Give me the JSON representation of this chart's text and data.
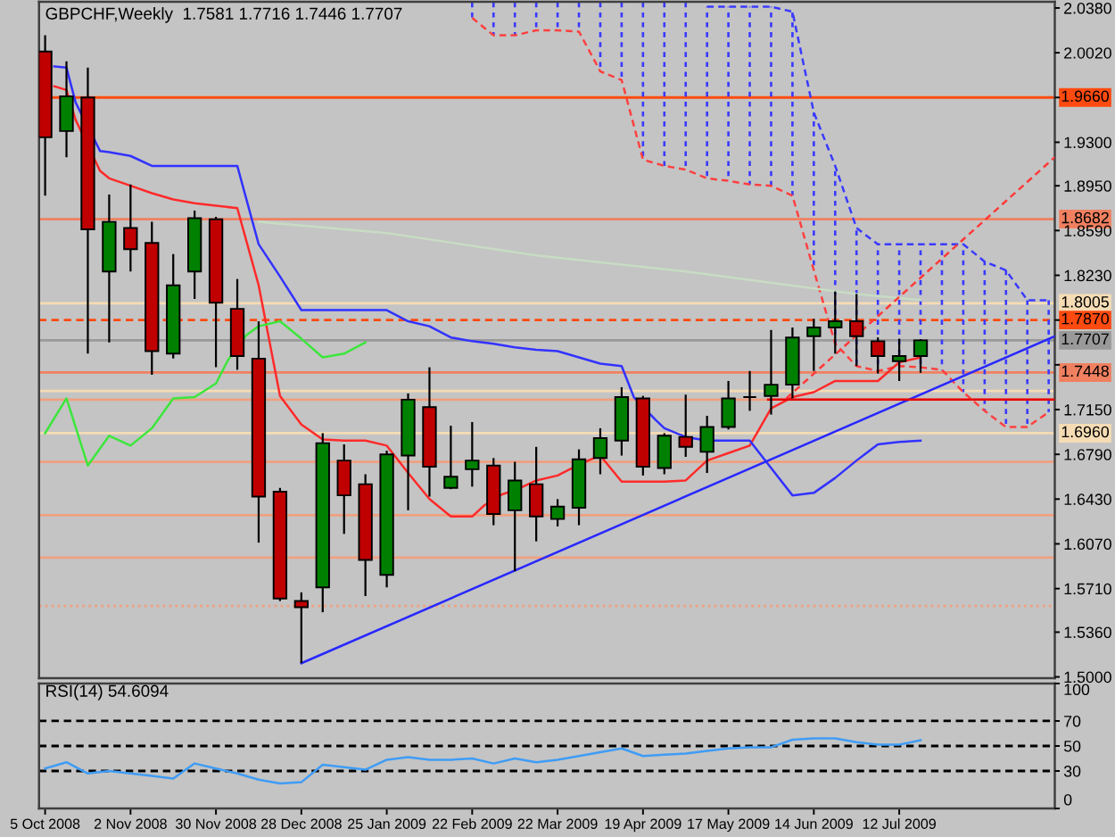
{
  "chart_data": [
    {
      "type": "candlestick",
      "title": "GBPCHF,Weekly  1.7581 1.7716 1.7446 1.7707",
      "x": [
        "2008-10-05",
        "2008-10-12",
        "2008-10-19",
        "2008-10-26",
        "2008-11-02",
        "2008-11-09",
        "2008-11-16",
        "2008-11-23",
        "2008-11-30",
        "2008-12-07",
        "2008-12-14",
        "2008-12-21",
        "2008-12-28",
        "2009-01-04",
        "2009-01-11",
        "2009-01-18",
        "2009-01-25",
        "2009-02-01",
        "2009-02-08",
        "2009-02-15",
        "2009-02-22",
        "2009-03-01",
        "2009-03-08",
        "2009-03-15",
        "2009-03-22",
        "2009-03-29",
        "2009-04-05",
        "2009-04-12",
        "2009-04-19",
        "2009-04-26",
        "2009-05-03",
        "2009-05-10",
        "2009-05-17",
        "2009-05-24",
        "2009-05-31",
        "2009-06-07",
        "2009-06-14",
        "2009-06-21",
        "2009-06-28",
        "2009-07-05",
        "2009-07-12",
        "2009-07-19"
      ],
      "ohlc": [
        [
          2.003,
          2.016,
          1.887,
          1.934
        ],
        [
          1.939,
          1.995,
          1.918,
          1.967
        ],
        [
          1.966,
          1.99,
          1.76,
          1.86
        ],
        [
          1.826,
          1.888,
          1.769,
          1.866
        ],
        [
          1.861,
          1.896,
          1.826,
          1.844
        ],
        [
          1.849,
          1.866,
          1.743,
          1.762
        ],
        [
          1.76,
          1.84,
          1.756,
          1.815
        ],
        [
          1.826,
          1.875,
          1.804,
          1.869
        ],
        [
          1.868,
          1.87,
          1.749,
          1.801
        ],
        [
          1.796,
          1.82,
          1.747,
          1.758
        ],
        [
          1.756,
          1.786,
          1.608,
          1.645
        ],
        [
          1.649,
          1.652,
          1.561,
          1.563
        ],
        [
          1.561,
          1.568,
          1.511,
          1.556
        ],
        [
          1.572,
          1.696,
          1.552,
          1.688
        ],
        [
          1.674,
          1.687,
          1.615,
          1.646
        ],
        [
          1.655,
          1.663,
          1.565,
          1.594
        ],
        [
          1.582,
          1.682,
          1.572,
          1.679
        ],
        [
          1.678,
          1.728,
          1.634,
          1.723
        ],
        [
          1.717,
          1.749,
          1.645,
          1.669
        ],
        [
          1.652,
          1.702,
          1.651,
          1.661
        ],
        [
          1.667,
          1.705,
          1.653,
          1.674
        ],
        [
          1.67,
          1.676,
          1.622,
          1.631
        ],
        [
          1.634,
          1.673,
          1.585,
          1.658
        ],
        [
          1.655,
          1.685,
          1.609,
          1.629
        ],
        [
          1.627,
          1.643,
          1.621,
          1.637
        ],
        [
          1.636,
          1.683,
          1.622,
          1.675
        ],
        [
          1.676,
          1.7,
          1.663,
          1.692
        ],
        [
          1.69,
          1.733,
          1.678,
          1.725
        ],
        [
          1.724,
          1.726,
          1.662,
          1.669
        ],
        [
          1.668,
          1.696,
          1.663,
          1.694
        ],
        [
          1.693,
          1.727,
          1.677,
          1.685
        ],
        [
          1.681,
          1.71,
          1.664,
          1.701
        ],
        [
          1.701,
          1.738,
          1.699,
          1.724
        ],
        [
          1.725,
          1.746,
          1.714,
          1.725
        ],
        [
          1.726,
          1.779,
          1.711,
          1.735
        ],
        [
          1.735,
          1.781,
          1.724,
          1.773
        ],
        [
          1.774,
          1.788,
          1.746,
          1.781
        ],
        [
          1.781,
          1.81,
          1.76,
          1.786
        ],
        [
          1.786,
          1.808,
          1.75,
          1.774
        ],
        [
          1.77,
          1.773,
          1.744,
          1.758
        ],
        [
          1.754,
          1.772,
          1.738,
          1.758
        ],
        [
          1.7581,
          1.7716,
          1.7446,
          1.7707
        ]
      ],
      "colors": [
        "#c00000",
        "#008000",
        "#c00000",
        "#008000",
        "#c00000",
        "#c00000",
        "#008000",
        "#008000",
        "#c00000",
        "#c00000",
        "#c00000",
        "#c00000",
        "#c00000",
        "#008000",
        "#c00000",
        "#c00000",
        "#008000",
        "#008000",
        "#c00000",
        "#008000",
        "#008000",
        "#c00000",
        "#008000",
        "#c00000",
        "#008000",
        "#008000",
        "#008000",
        "#008000",
        "#c00000",
        "#008000",
        "#c00000",
        "#008000",
        "#008000",
        "#000000",
        "#008000",
        "#008000",
        "#008000",
        "#008000",
        "#c00000",
        "#c00000",
        "#008000",
        "#008000"
      ],
      "series": [
        {
          "type": "bar",
          "color": "#3a3aff",
          "line_style": "dashed",
          "x": [
            "2009-02-22",
            "2009-03-01",
            "2009-03-08",
            "2009-03-15",
            "2009-03-22",
            "2009-03-29",
            "2009-04-05",
            "2009-04-12",
            "2009-04-19",
            "2009-04-26",
            "2009-05-03",
            "2009-05-10",
            "2009-05-17",
            "2009-05-24",
            "2009-05-31",
            "2009-06-07",
            "2009-06-14",
            "2009-06-21",
            "2009-06-28",
            "2009-07-05",
            "2009-07-12",
            "2009-07-19",
            "2009-07-26",
            "2009-08-02",
            "2009-08-09",
            "2009-08-16",
            "2009-08-23",
            "2009-08-30"
          ],
          "base": [
            2.03,
            2.016,
            2.016,
            2.02,
            2.02,
            2.019,
            1.987,
            1.98,
            1.916,
            1.911,
            1.908,
            1.901,
            1.899,
            1.896,
            1.895,
            1.887,
            1.827,
            1.768,
            1.75,
            1.746,
            1.75,
            1.749,
            1.747,
            1.729,
            1.714,
            1.701,
            1.701,
            1.713
          ],
          "values": [
            0.013,
            0.027,
            0.027,
            0.023,
            0.023,
            0.024,
            0.056,
            0.063,
            0.127,
            0.132,
            0.135,
            0.138,
            0.14,
            0.143,
            0.144,
            0.148,
            0.127,
            0.143,
            0.111,
            0.102,
            0.098,
            0.099,
            0.101,
            0.119,
            0.12,
            0.126,
            0.102,
            0.09
          ]
        },
        {
          "type": "line",
          "color": "#ff4040",
          "line_style": "dashed",
          "x": [
            "2009-02-22",
            "2009-03-01",
            "2009-03-08",
            "2009-03-15",
            "2009-03-22",
            "2009-03-29",
            "2009-04-05",
            "2009-04-12",
            "2009-04-19",
            "2009-04-26",
            "2009-05-03",
            "2009-05-10",
            "2009-05-17",
            "2009-05-24",
            "2009-05-31",
            "2009-06-07",
            "2009-06-14",
            "2009-06-21",
            "2009-06-28",
            "2009-07-05",
            "2009-07-12",
            "2009-07-19",
            "2009-07-26",
            "2009-08-02",
            "2009-08-09",
            "2009-08-16",
            "2009-08-23",
            "2009-08-30"
          ],
          "values": [
            2.03,
            2.016,
            2.016,
            2.02,
            2.02,
            2.019,
            1.987,
            1.98,
            1.916,
            1.911,
            1.908,
            1.901,
            1.899,
            1.896,
            1.895,
            1.887,
            1.827,
            1.768,
            1.75,
            1.746,
            1.75,
            1.749,
            1.747,
            1.729,
            1.714,
            1.701,
            1.701,
            1.713
          ]
        },
        {
          "type": "line",
          "color": "#3a3aff",
          "line_style": "dashed",
          "x": [
            "2009-05-10",
            "2009-05-17",
            "2009-05-24",
            "2009-05-31",
            "2009-06-07",
            "2009-06-14",
            "2009-06-21",
            "2009-06-28",
            "2009-07-05",
            "2009-07-12",
            "2009-07-19",
            "2009-07-26",
            "2009-08-02",
            "2009-08-09",
            "2009-08-16",
            "2009-08-23",
            "2009-08-30"
          ],
          "values": [
            2.039,
            2.039,
            2.039,
            2.039,
            2.035,
            1.954,
            1.911,
            1.861,
            1.848,
            1.848,
            1.848,
            1.848,
            1.848,
            1.834,
            1.827,
            1.803,
            1.803
          ]
        },
        {
          "type": "line",
          "color": "#c8dcc4",
          "x": [
            "2008-12-14",
            "2009-01-25",
            "2009-03-15",
            "2009-05-03",
            "2009-06-28",
            "2009-07-19"
          ],
          "values": [
            1.866,
            1.857,
            1.839,
            1.826,
            1.808,
            1.803
          ]
        },
        {
          "type": "line",
          "color": "#ff2a2a",
          "x": [
            "2008-10-08",
            "2008-10-12",
            "2008-10-15",
            "2008-10-23",
            "2008-10-26",
            "2008-11-02",
            "2008-11-09",
            "2008-11-16",
            "2008-11-23",
            "2008-11-30",
            "2008-12-07",
            "2008-12-14",
            "2008-12-21",
            "2008-12-28",
            "2009-01-04",
            "2009-01-11",
            "2009-01-18",
            "2009-01-25",
            "2009-02-01",
            "2009-02-08",
            "2009-02-15",
            "2009-02-22",
            "2009-02-26",
            "2009-03-04",
            "2009-03-08",
            "2009-03-15",
            "2009-03-22",
            "2009-03-26",
            "2009-04-01",
            "2009-04-05",
            "2009-04-12",
            "2009-04-19",
            "2009-04-26",
            "2009-05-03",
            "2009-05-10",
            "2009-05-17",
            "2009-05-24",
            "2009-05-31",
            "2009-06-07",
            "2009-06-14",
            "2009-06-21",
            "2009-06-28",
            "2009-07-05",
            "2009-07-12",
            "2009-07-19"
          ],
          "values": [
            1.975,
            1.972,
            1.948,
            1.907,
            1.901,
            1.895,
            1.889,
            1.884,
            1.881,
            1.879,
            1.877,
            1.815,
            1.726,
            1.703,
            1.691,
            1.69,
            1.69,
            1.686,
            1.664,
            1.643,
            1.629,
            1.629,
            1.638,
            1.647,
            1.65,
            1.658,
            1.662,
            1.667,
            1.674,
            1.678,
            1.657,
            1.657,
            1.657,
            1.658,
            1.674,
            1.68,
            1.686,
            1.716,
            1.725,
            1.729,
            1.738,
            1.738,
            1.738,
            1.753,
            1.757
          ]
        },
        {
          "type": "line",
          "color": "#3232ff",
          "x": [
            "2008-10-08",
            "2008-10-12",
            "2008-10-15",
            "2008-10-23",
            "2008-10-26",
            "2008-11-02",
            "2008-11-09",
            "2008-11-16",
            "2008-11-23",
            "2008-11-30",
            "2008-12-07",
            "2008-12-14",
            "2008-12-21",
            "2008-12-28",
            "2009-01-04",
            "2009-01-11",
            "2009-01-18",
            "2009-01-25",
            "2009-02-01",
            "2009-02-08",
            "2009-02-15",
            "2009-02-22",
            "2009-03-01",
            "2009-03-08",
            "2009-03-15",
            "2009-03-22",
            "2009-03-29",
            "2009-04-05",
            "2009-04-12",
            "2009-04-16",
            "2009-04-23",
            "2009-04-26",
            "2009-05-03",
            "2009-05-10",
            "2009-05-17",
            "2009-05-24",
            "2009-05-31",
            "2009-06-07",
            "2009-06-14",
            "2009-06-21",
            "2009-06-28",
            "2009-07-05",
            "2009-07-12",
            "2009-07-19"
          ],
          "values": [
            1.991,
            1.99,
            1.962,
            1.923,
            1.922,
            1.919,
            1.911,
            1.911,
            1.911,
            1.911,
            1.911,
            1.848,
            1.822,
            1.795,
            1.795,
            1.795,
            1.795,
            1.795,
            1.786,
            1.782,
            1.773,
            1.77,
            1.768,
            1.765,
            1.763,
            1.762,
            1.757,
            1.752,
            1.75,
            1.725,
            1.707,
            1.7,
            1.693,
            1.69,
            1.69,
            1.69,
            1.668,
            1.646,
            1.648,
            1.66,
            1.674,
            1.687,
            1.689,
            1.69
          ]
        },
        {
          "type": "line",
          "color": "#3ce63c",
          "x": [
            "2008-10-05",
            "2008-10-12",
            "2008-10-19",
            "2008-10-26",
            "2008-11-02",
            "2008-11-09",
            "2008-11-16",
            "2008-11-23",
            "2008-11-30",
            "2008-12-04",
            "2008-12-10",
            "2008-12-14",
            "2008-12-21",
            "2008-12-28",
            "2009-01-04",
            "2009-01-11",
            "2009-01-18"
          ],
          "values": [
            1.696,
            1.724,
            1.67,
            1.694,
            1.686,
            1.7,
            1.724,
            1.725,
            1.736,
            1.755,
            1.775,
            1.782,
            1.786,
            1.772,
            1.757,
            1.76,
            1.769
          ]
        },
        {
          "type": "line",
          "color": "#2828ff",
          "x": [
            "2008-12-28",
            "2009-09-01"
          ],
          "values": [
            1.511,
            1.774
          ]
        },
        {
          "type": "line",
          "color": "#ff3a3a",
          "line_style": "dashed",
          "x": [
            "2009-06-05",
            "2009-09-01"
          ],
          "values": [
            1.724,
            1.918
          ]
        },
        {
          "type": "line",
          "color": "#e60000",
          "x": [
            "2009-05-30",
            "2009-09-01"
          ],
          "values": [
            1.723,
            1.723
          ]
        }
      ],
      "ref_lines": [
        {
          "axis": "y",
          "value": 1.966,
          "label": "1.9660",
          "color": "#ff4a10"
        },
        {
          "axis": "y",
          "value": 1.8682,
          "label": "1.8682",
          "color": "#f08060"
        },
        {
          "axis": "y",
          "value": 1.8005,
          "label": "1.8005",
          "color": "#f5dcb4"
        },
        {
          "axis": "y",
          "value": 1.787,
          "label": "1.7870",
          "color": "#ff4a10",
          "line_style": "dashed"
        },
        {
          "axis": "y",
          "value": 1.7707,
          "label": "1.7707",
          "color": "#999999"
        },
        {
          "axis": "y",
          "value": 1.7448,
          "label": "1.7448",
          "color": "#f08060"
        },
        {
          "axis": "y",
          "value": 1.73,
          "color": "#f5dcb4"
        },
        {
          "axis": "y",
          "value": 1.723,
          "color": "#f0a080"
        },
        {
          "axis": "y",
          "value": 1.696,
          "label": "1.6960",
          "color": "#f5dcb4"
        },
        {
          "axis": "y",
          "value": 1.673,
          "color": "#f0a080"
        },
        {
          "axis": "y",
          "value": 1.63,
          "color": "#f0a080"
        },
        {
          "axis": "y",
          "value": 1.596,
          "color": "#f0a080"
        },
        {
          "axis": "y",
          "value": 1.557,
          "color": "#f0a080",
          "line_style": "dotted"
        }
      ],
      "xlim": [
        "2008-10-03",
        "2009-09-01"
      ],
      "ylim": [
        1.499,
        2.043
      ],
      "yticks": [
        {
          "value": 1.5,
          "label": "1.5000"
        },
        {
          "value": 1.536,
          "label": "1.5360"
        },
        {
          "value": 1.571,
          "label": "1.5710"
        },
        {
          "value": 1.607,
          "label": "1.6070"
        },
        {
          "value": 1.643,
          "label": "1.6430"
        },
        {
          "value": 1.679,
          "label": "1.6790"
        },
        {
          "value": 1.715,
          "label": "1.7150"
        },
        {
          "value": 1.751,
          "label": null
        },
        {
          "value": 1.787,
          "label": null
        },
        {
          "value": 1.823,
          "label": "1.8230"
        },
        {
          "value": 1.859,
          "label": "1.8590"
        },
        {
          "value": 1.895,
          "label": "1.8950"
        },
        {
          "value": 1.93,
          "label": "1.9300"
        },
        {
          "value": 1.966,
          "label": null
        },
        {
          "value": 2.002,
          "label": "2.0020"
        },
        {
          "value": 2.038,
          "label": "2.0380"
        }
      ],
      "tick_labels": "y"
    },
    {
      "type": "line",
      "title": "RSI(14) 54.6094",
      "x": [
        "2008-10-05",
        "2008-10-12",
        "2008-10-19",
        "2008-10-26",
        "2008-11-02",
        "2008-11-09",
        "2008-11-16",
        "2008-11-23",
        "2008-11-30",
        "2008-12-07",
        "2008-12-14",
        "2008-12-21",
        "2008-12-28",
        "2009-01-04",
        "2009-01-11",
        "2009-01-18",
        "2009-01-25",
        "2009-02-01",
        "2009-02-08",
        "2009-02-15",
        "2009-02-22",
        "2009-03-01",
        "2009-03-08",
        "2009-03-15",
        "2009-03-22",
        "2009-03-29",
        "2009-04-05",
        "2009-04-12",
        "2009-04-19",
        "2009-04-26",
        "2009-05-03",
        "2009-05-10",
        "2009-05-17",
        "2009-05-24",
        "2009-05-31",
        "2009-06-07",
        "2009-06-14",
        "2009-06-21",
        "2009-06-28",
        "2009-07-05",
        "2009-07-12",
        "2009-07-19"
      ],
      "series": [
        {
          "color": "#3f9cf5",
          "values": [
            32,
            37,
            28,
            30,
            28,
            26,
            24,
            36,
            32,
            28,
            23,
            20,
            21,
            35,
            33,
            31,
            39,
            41,
            39,
            39,
            40,
            36,
            40,
            37,
            39,
            42,
            45,
            48,
            42,
            43,
            44,
            46,
            48,
            49,
            49,
            55,
            56,
            56,
            53,
            51,
            51,
            54.6094
          ]
        }
      ],
      "ref_lines": [
        {
          "axis": "y",
          "value": 70,
          "color": "#000000",
          "line_style": "dashed"
        },
        {
          "axis": "y",
          "value": 50,
          "color": "#000000",
          "line_style": "dashed"
        },
        {
          "axis": "y",
          "value": 30,
          "color": "#000000",
          "line_style": "dashed"
        }
      ],
      "xlim": [
        "2008-10-03",
        "2009-09-01"
      ],
      "ylim": [
        0,
        100
      ],
      "yticks": [
        0,
        30,
        50,
        70,
        100
      ],
      "xticks": [
        {
          "value": "2008-10-05",
          "label": "5 Oct 2008"
        },
        {
          "value": "2008-11-02",
          "label": "2 Nov 2008"
        },
        {
          "value": "2008-11-30",
          "label": "30 Nov 2008"
        },
        {
          "value": "2008-12-28",
          "label": "28 Dec 2008"
        },
        {
          "value": "2009-01-25",
          "label": "25 Jan 2009"
        },
        {
          "value": "2009-02-22",
          "label": "22 Feb 2009"
        },
        {
          "value": "2009-03-22",
          "label": "22 Mar 2009"
        },
        {
          "value": "2009-04-19",
          "label": "19 Apr 2009"
        },
        {
          "value": "2009-05-17",
          "label": "17 May 2009"
        },
        {
          "value": "2009-06-14",
          "label": "14 Jun 2009"
        },
        {
          "value": "2009-07-12",
          "label": "12 Jul 2009"
        }
      ]
    }
  ]
}
